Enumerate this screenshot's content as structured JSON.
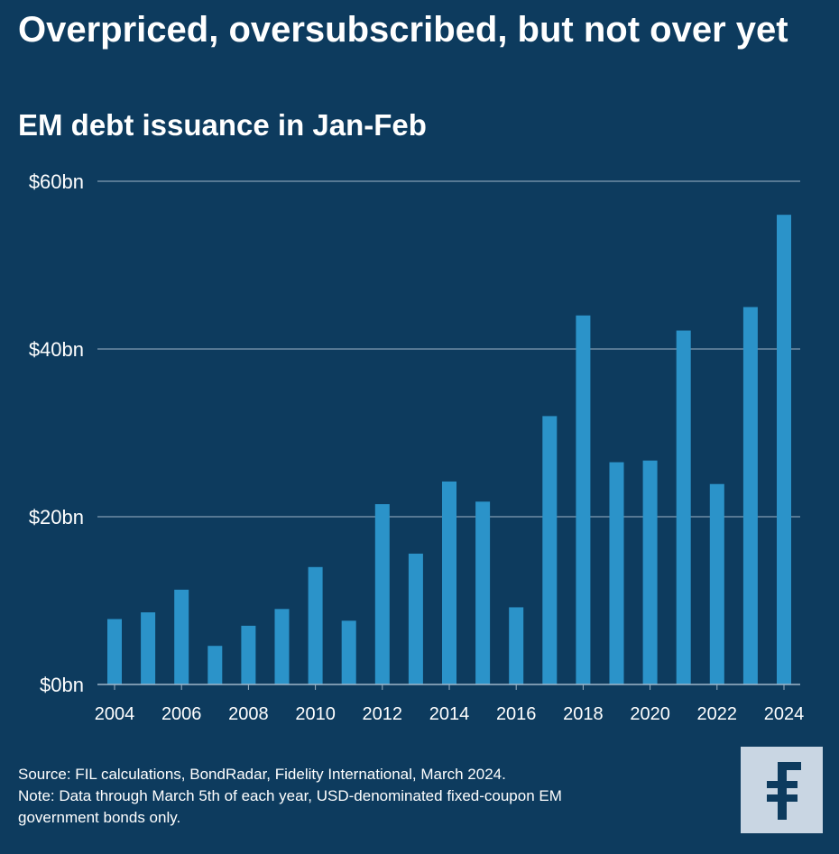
{
  "title": "Overpriced, oversubscribed, but not over yet",
  "subtitle": "EM debt issuance in Jan-Feb",
  "colors": {
    "background": "#0d3b5e",
    "bar": "#2b93c9",
    "grid": "#9fb6c8",
    "text": "#ffffff",
    "logo_bg": "#c9d6e3",
    "logo_fg": "#0d3b5e"
  },
  "chart_data": {
    "type": "bar",
    "categories": [
      "2004",
      "2005",
      "2006",
      "2007",
      "2008",
      "2009",
      "2010",
      "2011",
      "2012",
      "2013",
      "2014",
      "2015",
      "2016",
      "2017",
      "2018",
      "2019",
      "2020",
      "2021",
      "2022",
      "2023",
      "2024"
    ],
    "values": [
      7.8,
      8.6,
      11.3,
      4.6,
      7.0,
      9.0,
      14.0,
      7.6,
      21.5,
      15.6,
      24.2,
      21.8,
      9.2,
      32.0,
      44.0,
      26.5,
      26.7,
      42.2,
      23.9,
      45.0,
      56.0
    ],
    "y_ticks": [
      0,
      20,
      40,
      60
    ],
    "y_tick_labels": [
      "$0bn",
      "$20bn",
      "$40bn",
      "$60bn"
    ],
    "x_tick_labels": [
      "2004",
      "2006",
      "2008",
      "2010",
      "2012",
      "2014",
      "2016",
      "2018",
      "2020",
      "2022",
      "2024"
    ],
    "ylim": [
      0,
      60
    ],
    "grid": true,
    "xlabel": "",
    "ylabel": ""
  },
  "footer": {
    "source": "Source: FIL calculations, BondRadar, Fidelity International, March 2024.",
    "note_line1": "Note: Data through March 5th of each year, USD-denominated fixed-coupon EM",
    "note_line2": "government bonds only."
  },
  "logo": {
    "icon": "fidelity-logo-icon"
  }
}
